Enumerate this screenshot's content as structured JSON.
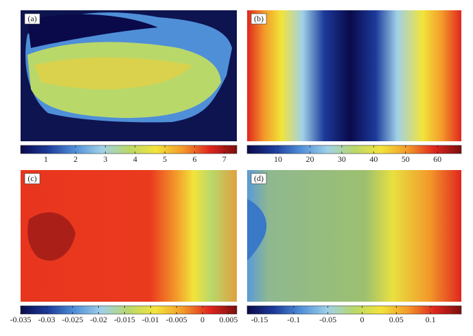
{
  "chart_data": [
    {
      "type": "heatmap",
      "panel_label": "(a)",
      "colormap": [
        "#0a0a4a",
        "#1c3a9a",
        "#4f8fd8",
        "#9fd0e8",
        "#b9d86a",
        "#f2e43a",
        "#f39a2a",
        "#e0261e",
        "#7a0e0e"
      ],
      "clim": [
        0.15,
        7.42
      ],
      "cticks": [
        1,
        2,
        3,
        4,
        5,
        6,
        7
      ]
    },
    {
      "type": "heatmap",
      "panel_label": "(b)",
      "colormap": [
        "#0a0a4a",
        "#1c3a9a",
        "#4f8fd8",
        "#9fd0e8",
        "#b9d86a",
        "#f2e43a",
        "#f39a2a",
        "#e0261e",
        "#7a0e0e"
      ],
      "clim": [
        0.3,
        67.5
      ],
      "cticks": [
        10,
        20,
        30,
        40,
        50,
        60
      ]
    },
    {
      "type": "heatmap",
      "panel_label": "(c)",
      "colormap": [
        "#0a0a4a",
        "#1c3a9a",
        "#4f8fd8",
        "#9fd0e8",
        "#b9d86a",
        "#f2e43a",
        "#f39a2a",
        "#e0261e",
        "#7a0e0e"
      ],
      "clim": [
        -0.035,
        0.0066
      ],
      "cticks": [
        -0.035,
        -0.03,
        -0.025,
        -0.02,
        -0.015,
        -0.01,
        -0.005,
        0,
        0.005
      ]
    },
    {
      "type": "heatmap",
      "panel_label": "(d)",
      "colormap": [
        "#0a0a4a",
        "#1c3a9a",
        "#4f8fd8",
        "#9fd0e8",
        "#b9d86a",
        "#f2e43a",
        "#f39a2a",
        "#e0261e",
        "#7a0e0e"
      ],
      "clim": [
        -0.168,
        0.145
      ],
      "cticks": [
        -0.15,
        -0.1,
        -0.05,
        0,
        0.05,
        0.1
      ]
    }
  ]
}
